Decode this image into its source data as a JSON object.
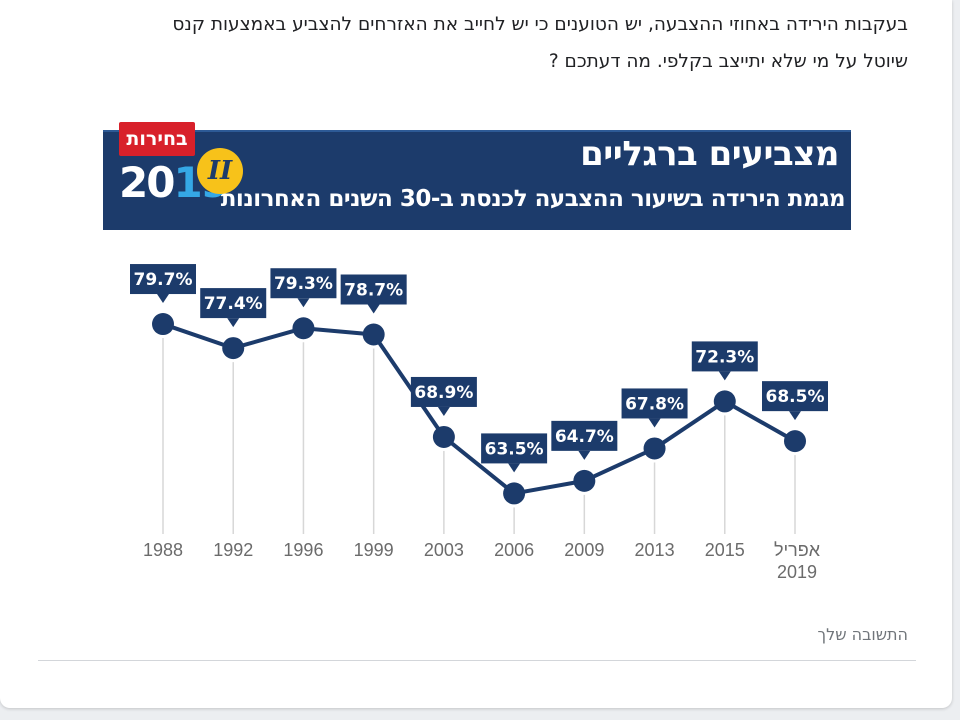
{
  "question": {
    "line1": "בעקבות הירידה באחוזי ההצבעה, יש הטוענים כי יש לחייב את האזרחים להצביע באמצעות קנס",
    "line2": "שיוטל על מי שלא יתייצב בקלפי. מה דעתכם ?"
  },
  "banner": {
    "title": "מצביעים ברגליים",
    "subtitle": "מגמת הירידה בשיעור ההצבעה לכנסת ב-30 השנים האחרונות",
    "logo_tag": "בחירות",
    "logo_year_a": "20",
    "logo_year_b": "19",
    "logo_badge": "II"
  },
  "colors": {
    "banner_bg": "#1c3b6b",
    "line": "#1c3b6b",
    "label_bg": "#1c3b6b",
    "axis_text": "#6b6b6b",
    "accent_red": "#d8202a",
    "accent_yellow": "#f7c21a"
  },
  "chart_data": {
    "type": "line",
    "title": "מצביעים ברגליים",
    "subtitle": "מגמת הירידה בשיעור ההצבעה לכנסת ב-30 השנים האחרונות",
    "xlabel": "",
    "ylabel": "",
    "ylim": [
      60,
      82
    ],
    "grid": false,
    "categories": [
      "1988",
      "1992",
      "1996",
      "1999",
      "2003",
      "2006",
      "2009",
      "2013",
      "2015",
      "אפריל 2019"
    ],
    "values": [
      79.7,
      77.4,
      79.3,
      78.7,
      68.9,
      63.5,
      64.7,
      67.8,
      72.3,
      68.5
    ],
    "data_labels": [
      "79.7%",
      "77.4%",
      "79.3%",
      "78.7%",
      "68.9%",
      "63.5%",
      "64.7%",
      "67.8%",
      "72.3%",
      "68.5%"
    ]
  },
  "answer": {
    "placeholder": "התשובה שלך"
  }
}
